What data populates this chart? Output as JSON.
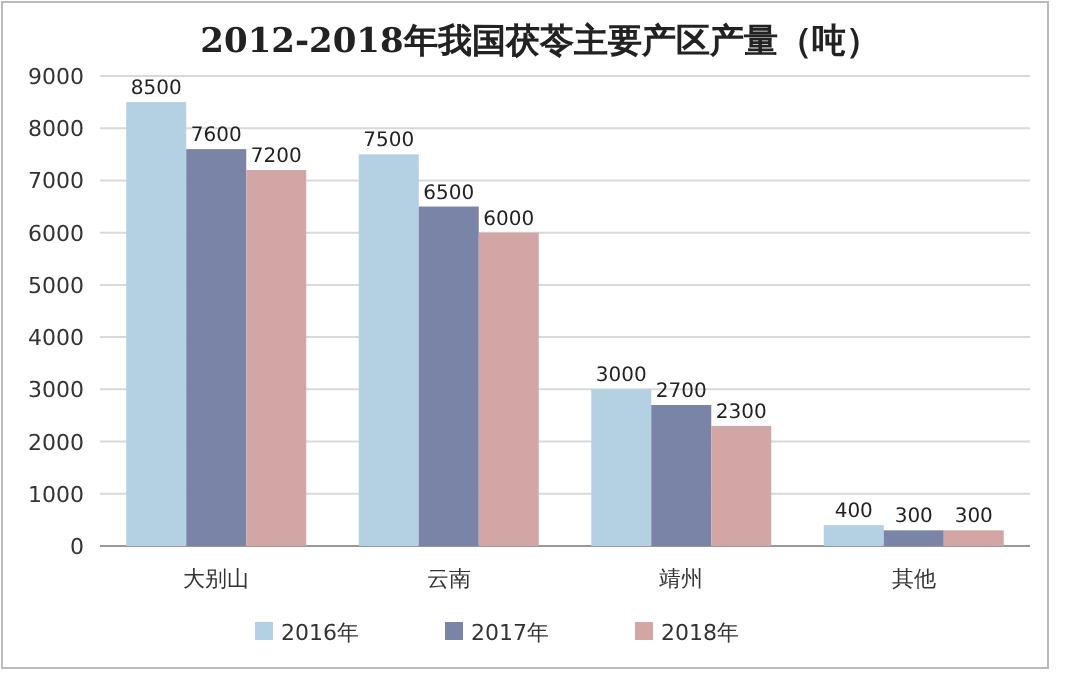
{
  "chart_data": {
    "type": "bar",
    "title": "2012-2018年我国茯苓主要产区产量（吨）",
    "categories": [
      "大别山",
      "云南",
      "靖州",
      "其他"
    ],
    "series": [
      {
        "name": "2016年",
        "color": "#b4d0e3",
        "values": [
          8500,
          7500,
          3000,
          400
        ]
      },
      {
        "name": "2017年",
        "color": "#7a84a6",
        "values": [
          7600,
          6500,
          2700,
          300
        ]
      },
      {
        "name": "2018年",
        "color": "#d3a6a6",
        "values": [
          7200,
          6000,
          2300,
          300
        ]
      }
    ],
    "ylim": [
      0,
      9000
    ],
    "yticks": [
      0,
      1000,
      2000,
      3000,
      4000,
      5000,
      6000,
      7000,
      8000,
      9000
    ],
    "grid": "y",
    "legend": "bottom",
    "data_labels": true
  }
}
